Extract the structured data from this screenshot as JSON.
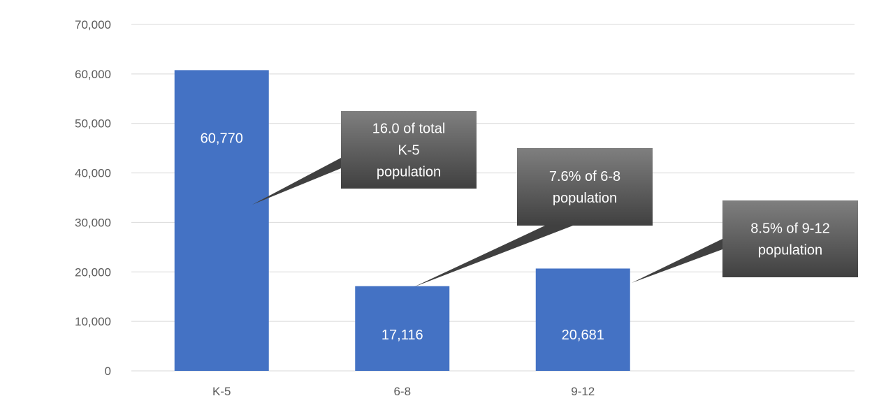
{
  "chart_data": {
    "type": "bar",
    "categories": [
      "K-5",
      "6-8",
      "9-12"
    ],
    "values": [
      60770,
      17116,
      20681
    ],
    "data_labels": [
      "60,770",
      "17,116",
      "20,681"
    ],
    "ylim": [
      0,
      70000
    ],
    "y_ticks": [
      0,
      10000,
      20000,
      30000,
      40000,
      50000,
      60000,
      70000
    ],
    "y_tick_labels": [
      "0",
      "10,000",
      "20,000",
      "30,000",
      "40,000",
      "50,000",
      "60,000",
      "70,000"
    ],
    "grid": true,
    "legend": "none",
    "colors": {
      "bar": "#4472c4",
      "gridline": "#d9d9d9",
      "tick_text": "#595959",
      "callout_top": "#7f7f7f",
      "callout_bottom": "#404040"
    },
    "annotations": [
      {
        "category": "K-5",
        "lines": [
          "16.0 of total",
          "K-5",
          "population"
        ]
      },
      {
        "category": "6-8",
        "lines": [
          "7.6% of 6-8",
          "population"
        ]
      },
      {
        "category": "9-12",
        "lines": [
          "8.5% of 9-12",
          "population"
        ]
      }
    ]
  }
}
